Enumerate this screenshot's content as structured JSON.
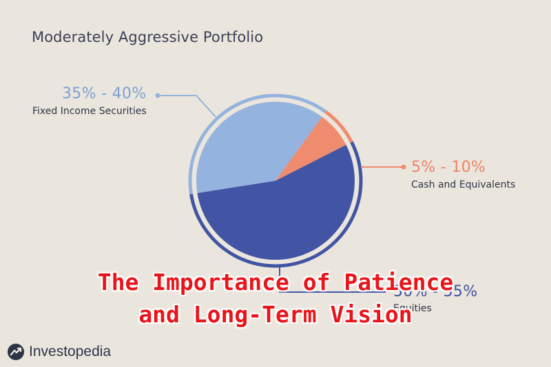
{
  "chart_data": {
    "type": "pie",
    "title": "Moderately Aggressive Portfolio",
    "slices": [
      {
        "name": "Fixed Income Securities",
        "range_label": "35% - 40%",
        "value": 37.5,
        "color": "#94b3de"
      },
      {
        "name": "Cash and Equivalents",
        "range_label": "5% - 10%",
        "value": 7.5,
        "color": "#f08c6e"
      },
      {
        "name": "Equities",
        "range_label": "50% - 55%",
        "value": 55,
        "color": "#4255a4"
      }
    ]
  },
  "overlay": {
    "line1": "The Importance of Patience",
    "line2": "and Long-Term Vision"
  },
  "brand": {
    "name": "Investopedia"
  },
  "colors": {
    "background": "#ebe6dd",
    "overlay_text": "#e8151b",
    "dark_text": "#2e3347"
  }
}
